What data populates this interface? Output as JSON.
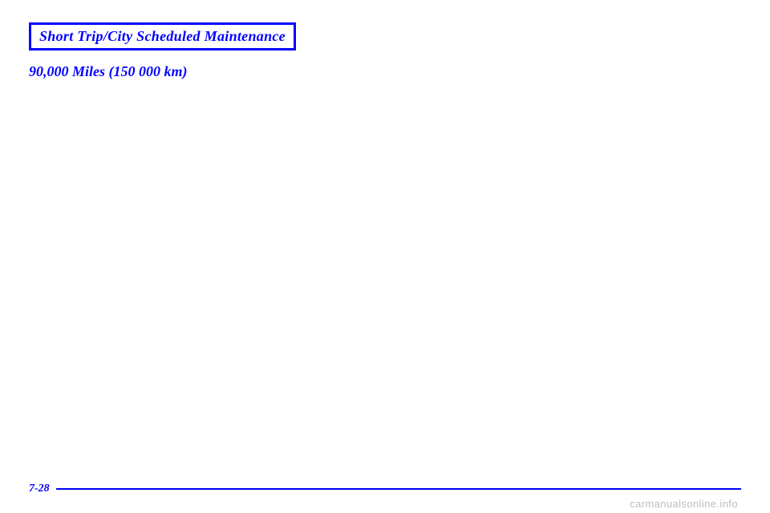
{
  "header": {
    "title": "Short Trip/City Scheduled Maintenance"
  },
  "subhead": "90,000 Miles (150 000 km)",
  "footer": {
    "page_number": "7-28"
  },
  "watermark": "carmanualsonline.info",
  "colors": {
    "accent": "#0000ff",
    "background": "#ffffff",
    "watermark": "#bdbdbd"
  }
}
